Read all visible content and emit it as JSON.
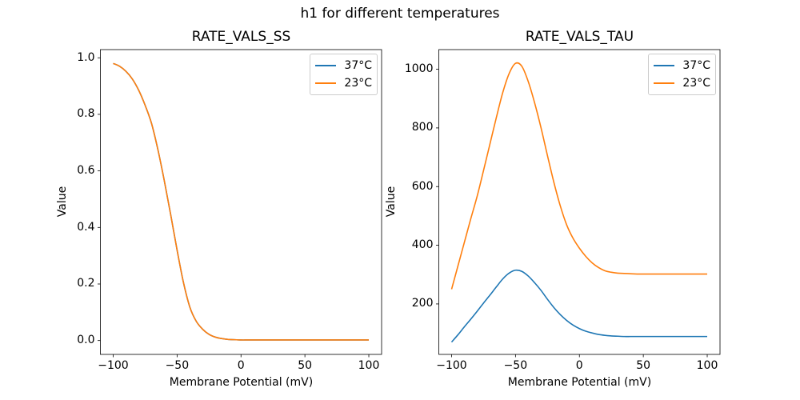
{
  "figure": {
    "suptitle": "h1 for different temperatures",
    "background_color": "#ffffff",
    "spine_color": "#000000"
  },
  "chart_data": [
    {
      "type": "line",
      "title": "RATE_VALS_SS",
      "xlabel": "Membrane Potential (mV)",
      "ylabel": "Value",
      "grid": false,
      "legend_location": "upper right",
      "xlim": [
        -110,
        110
      ],
      "ylim": [
        -0.049,
        1.029
      ],
      "xticks": [
        -100,
        -50,
        0,
        50,
        100
      ],
      "xtick_labels": [
        "−100",
        "−50",
        "0",
        "50",
        "100"
      ],
      "yticks": [
        0.0,
        0.2,
        0.4,
        0.6,
        0.8,
        1.0
      ],
      "ytick_labels": [
        "0.0",
        "0.2",
        "0.4",
        "0.6",
        "0.8",
        "1.0"
      ],
      "x": [
        -100,
        -95,
        -90,
        -85,
        -80,
        -75,
        -70,
        -65,
        -60,
        -55,
        -50,
        -45,
        -40,
        -35,
        -30,
        -25,
        -20,
        -15,
        -10,
        -5,
        0,
        5,
        10,
        15,
        20,
        25,
        30,
        35,
        40,
        45,
        50,
        55,
        60,
        65,
        70,
        75,
        80,
        85,
        90,
        95,
        100
      ],
      "series": [
        {
          "name": "37°C",
          "color": "#1f77b4",
          "values": [
            0.98,
            0.97,
            0.952,
            0.925,
            0.885,
            0.832,
            0.768,
            0.675,
            0.565,
            0.445,
            0.32,
            0.205,
            0.118,
            0.068,
            0.04,
            0.022,
            0.012,
            0.007,
            0.004,
            0.003,
            0.002,
            0.002,
            0.002,
            0.002,
            0.002,
            0.002,
            0.002,
            0.002,
            0.002,
            0.002,
            0.002,
            0.002,
            0.002,
            0.002,
            0.002,
            0.002,
            0.002,
            0.002,
            0.002,
            0.002,
            0.002
          ]
        },
        {
          "name": "23°C",
          "color": "#ff7f0e",
          "values": [
            0.98,
            0.97,
            0.952,
            0.925,
            0.885,
            0.832,
            0.768,
            0.675,
            0.565,
            0.445,
            0.32,
            0.205,
            0.118,
            0.068,
            0.04,
            0.022,
            0.012,
            0.007,
            0.004,
            0.003,
            0.002,
            0.002,
            0.002,
            0.002,
            0.002,
            0.002,
            0.002,
            0.002,
            0.002,
            0.002,
            0.002,
            0.002,
            0.002,
            0.002,
            0.002,
            0.002,
            0.002,
            0.002,
            0.002,
            0.002,
            0.002
          ]
        }
      ]
    },
    {
      "type": "line",
      "title": "RATE_VALS_TAU",
      "xlabel": "Membrane Potential (mV)",
      "ylabel": "Value",
      "grid": false,
      "legend_location": "upper right",
      "xlim": [
        -110,
        110
      ],
      "ylim": [
        28,
        1067
      ],
      "xticks": [
        -100,
        -50,
        0,
        50,
        100
      ],
      "xtick_labels": [
        "−100",
        "−50",
        "0",
        "50",
        "100"
      ],
      "yticks": [
        200,
        400,
        600,
        800,
        1000
      ],
      "ytick_labels": [
        "200",
        "400",
        "600",
        "800",
        "1000"
      ],
      "x": [
        -100,
        -95,
        -90,
        -85,
        -80,
        -75,
        -70,
        -65,
        -60,
        -55,
        -50,
        -45,
        -40,
        -35,
        -30,
        -25,
        -20,
        -15,
        -10,
        -5,
        0,
        5,
        10,
        15,
        20,
        25,
        30,
        35,
        40,
        45,
        50,
        55,
        60,
        65,
        70,
        75,
        80,
        85,
        90,
        95,
        100
      ],
      "series": [
        {
          "name": "37°C",
          "color": "#1f77b4",
          "values": [
            70,
            95,
            122,
            148,
            175,
            203,
            230,
            258,
            285,
            305,
            315,
            311,
            295,
            272,
            246,
            216,
            188,
            164,
            144,
            128,
            116,
            107,
            101,
            96,
            93,
            91,
            90,
            89,
            89,
            89,
            89,
            89,
            89,
            89,
            89,
            89,
            89,
            89,
            89,
            89,
            89
          ]
        },
        {
          "name": "23°C",
          "color": "#ff7f0e",
          "values": [
            250,
            330,
            410,
            490,
            567,
            655,
            745,
            835,
            920,
            985,
            1020,
            1010,
            958,
            885,
            800,
            706,
            615,
            535,
            470,
            424,
            390,
            362,
            340,
            324,
            313,
            308,
            305,
            304,
            303,
            302,
            302,
            302,
            302,
            302,
            302,
            302,
            302,
            302,
            302,
            302,
            302
          ]
        }
      ]
    }
  ]
}
